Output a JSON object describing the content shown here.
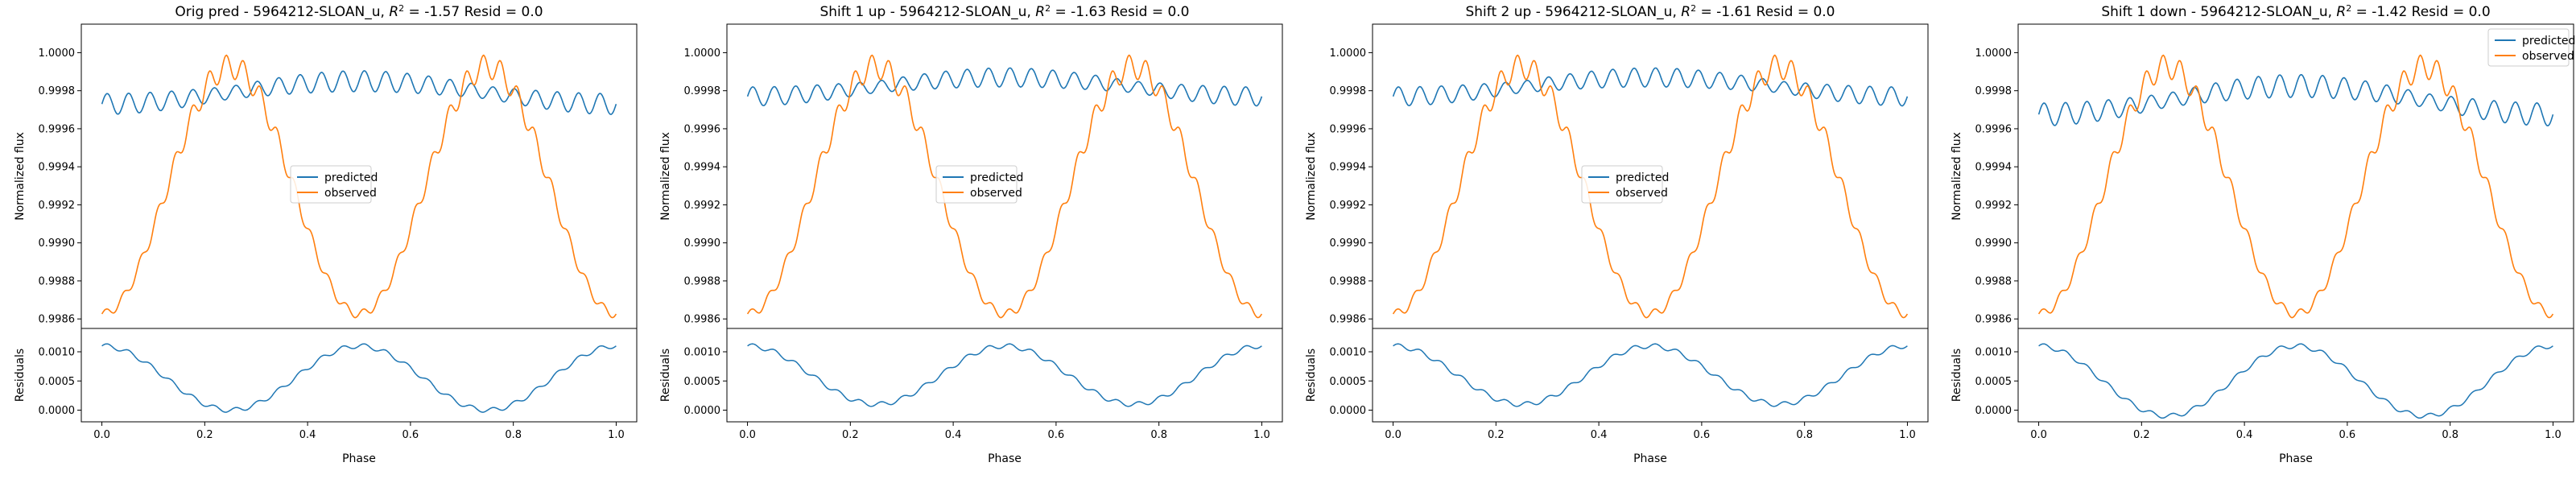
{
  "colors": {
    "predicted": "#1f77b4",
    "observed": "#ff7f0e"
  },
  "chart_data": [
    {
      "type": "line",
      "title": "Orig pred - 5964212-SLOAN_u, R² = -1.57 Resid = 0.0",
      "title_prefix": "Orig pred - 5964212-SLOAN_u, ",
      "r2": "-1.57",
      "title_suffix": " Resid = 0.0",
      "xlabel": "Phase",
      "ylabel": "Normalized flux",
      "resid_ylabel": "Residuals",
      "xlim": [
        -0.04,
        1.04
      ],
      "ylim": [
        0.99855,
        1.00015
      ],
      "resid_ylim": [
        -0.0002,
        0.0014
      ],
      "xticks": [
        "0.0",
        "0.2",
        "0.4",
        "0.6",
        "0.8",
        "1.0"
      ],
      "yticks": [
        "0.9986",
        "0.9988",
        "0.9990",
        "0.9992",
        "0.9994",
        "0.9996",
        "0.9998",
        "1.0000"
      ],
      "resid_yticks": [
        "0.0000",
        "0.0005",
        "0.0010"
      ],
      "legend": [
        "predicted",
        "observed"
      ],
      "legend_loc": "center",
      "series": [
        {
          "name": "predicted",
          "baseline": 0.99979,
          "amp": 0.00012,
          "ripple": 5.5e-05
        },
        {
          "name": "observed",
          "min": 0.99865,
          "max": 0.99995,
          "ripple": 8e-05
        }
      ],
      "residual": {
        "mean": 0.00055,
        "amp": 0.00055,
        "ripple": 4e-05
      }
    },
    {
      "type": "line",
      "title": "Shift 1 up - 5964212-SLOAN_u, R² = -1.63 Resid = 0.0",
      "title_prefix": "Shift 1 up - 5964212-SLOAN_u, ",
      "r2": "-1.63",
      "title_suffix": " Resid = 0.0",
      "xlabel": "Phase",
      "ylabel": "Normalized flux",
      "resid_ylabel": "Residuals",
      "xlim": [
        -0.04,
        1.04
      ],
      "ylim": [
        0.99855,
        1.00015
      ],
      "resid_ylim": [
        -0.0002,
        0.0014
      ],
      "xticks": [
        "0.0",
        "0.2",
        "0.4",
        "0.6",
        "0.8",
        "1.0"
      ],
      "yticks": [
        "0.9986",
        "0.9988",
        "0.9990",
        "0.9992",
        "0.9994",
        "0.9996",
        "0.9998",
        "1.0000"
      ],
      "resid_yticks": [
        "0.0000",
        "0.0005",
        "0.0010"
      ],
      "legend": [
        "predicted",
        "observed"
      ],
      "legend_loc": "center",
      "series": [
        {
          "name": "predicted",
          "baseline": 0.99982,
          "amp": 0.0001,
          "ripple": 5e-05
        },
        {
          "name": "observed",
          "min": 0.99865,
          "max": 0.99995,
          "ripple": 8e-05
        }
      ],
      "residual": {
        "mean": 0.0006,
        "amp": 0.0005,
        "ripple": 4e-05
      }
    },
    {
      "type": "line",
      "title": "Shift 2 up - 5964212-SLOAN_u, R² = -1.61 Resid = 0.0",
      "title_prefix": "Shift 2 up - 5964212-SLOAN_u, ",
      "r2": "-1.61",
      "title_suffix": " Resid = 0.0",
      "xlabel": "Phase",
      "ylabel": "Normalized flux",
      "resid_ylabel": "Residuals",
      "xlim": [
        -0.04,
        1.04
      ],
      "ylim": [
        0.99855,
        1.00015
      ],
      "resid_ylim": [
        -0.0002,
        0.0014
      ],
      "xticks": [
        "0.0",
        "0.2",
        "0.4",
        "0.6",
        "0.8",
        "1.0"
      ],
      "yticks": [
        "0.9986",
        "0.9988",
        "0.9990",
        "0.9992",
        "0.9994",
        "0.9996",
        "0.9998",
        "1.0000"
      ],
      "resid_yticks": [
        "0.0000",
        "0.0005",
        "0.0010"
      ],
      "legend": [
        "predicted",
        "observed"
      ],
      "legend_loc": "center",
      "series": [
        {
          "name": "predicted",
          "baseline": 0.99982,
          "amp": 0.0001,
          "ripple": 5e-05
        },
        {
          "name": "observed",
          "min": 0.99865,
          "max": 0.99995,
          "ripple": 8e-05
        }
      ],
      "residual": {
        "mean": 0.0006,
        "amp": 0.0005,
        "ripple": 4e-05
      }
    },
    {
      "type": "line",
      "title": "Shift 1 down - 5964212-SLOAN_u, R² = -1.42 Resid = 0.0",
      "title_prefix": "Shift 1 down - 5964212-SLOAN_u, ",
      "r2": "-1.42",
      "title_suffix": " Resid = 0.0",
      "xlabel": "Phase",
      "ylabel": "Normalized flux",
      "resid_ylabel": "Residuals",
      "xlim": [
        -0.04,
        1.04
      ],
      "ylim": [
        0.99855,
        1.00015
      ],
      "resid_ylim": [
        -0.0002,
        0.0014
      ],
      "xticks": [
        "0.0",
        "0.2",
        "0.4",
        "0.6",
        "0.8",
        "1.0"
      ],
      "yticks": [
        "0.9986",
        "0.9988",
        "0.9990",
        "0.9992",
        "0.9994",
        "0.9996",
        "0.9998",
        "1.0000"
      ],
      "resid_yticks": [
        "0.0000",
        "0.0005",
        "0.0010"
      ],
      "legend": [
        "predicted",
        "observed"
      ],
      "legend_loc": "upper right",
      "series": [
        {
          "name": "predicted",
          "baseline": 0.99975,
          "amp": 0.00015,
          "ripple": 6e-05
        },
        {
          "name": "observed",
          "min": 0.99865,
          "max": 0.99995,
          "ripple": 8e-05
        }
      ],
      "residual": {
        "mean": 0.0005,
        "amp": 0.0006,
        "ripple": 4e-05
      }
    }
  ]
}
